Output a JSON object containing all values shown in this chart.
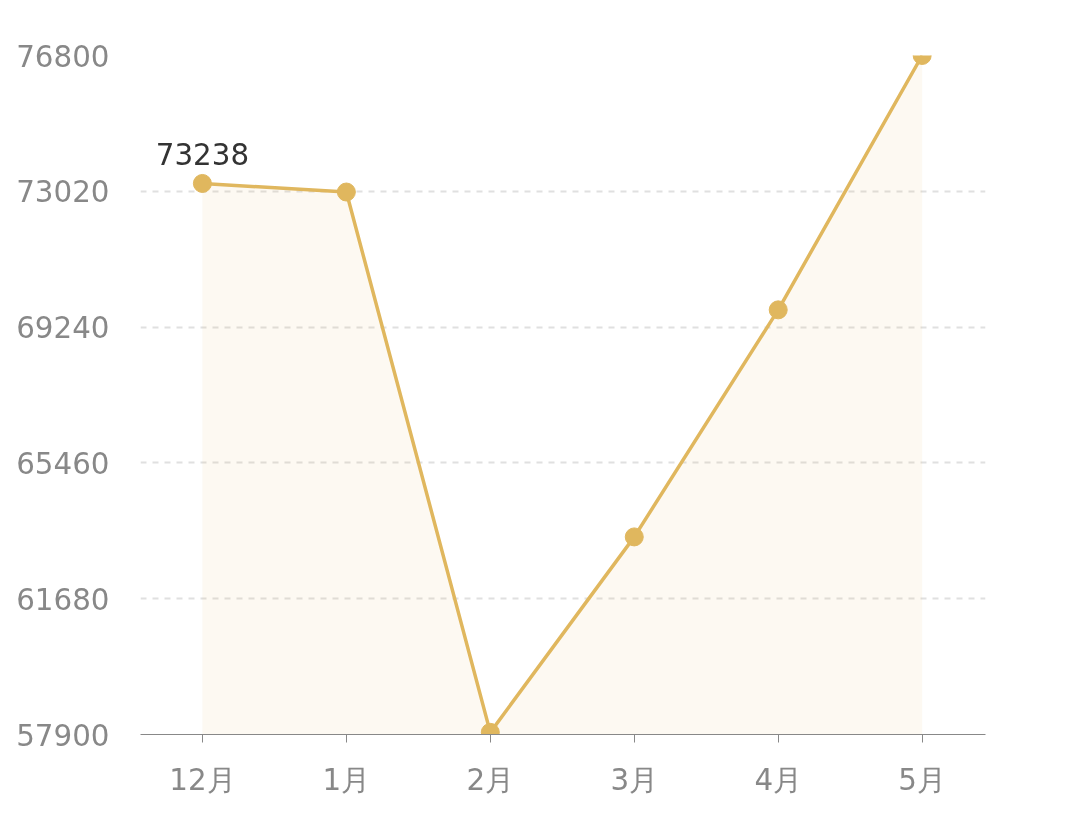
{
  "chart_data": {
    "type": "area",
    "categories": [
      "12月",
      "1月",
      "2月",
      "3月",
      "4月",
      "5月"
    ],
    "series": [
      {
        "color": "#e0b75e",
        "values": [
          73238,
          73000,
          57960,
          63400,
          69720,
          76800
        ],
        "value_labels": [
          "73238",
          null,
          null,
          null,
          null,
          null
        ]
      }
    ],
    "ylim": [
      57900,
      76800
    ],
    "yticks": [
      57900,
      61680,
      65460,
      69240,
      73020,
      76800
    ],
    "grid": "y",
    "marker": "circle",
    "line_style": "solid"
  }
}
